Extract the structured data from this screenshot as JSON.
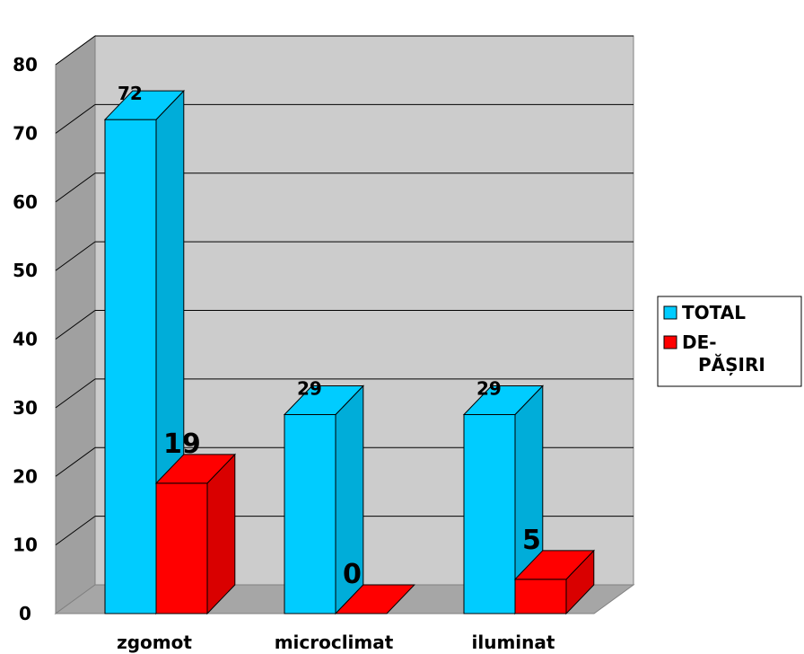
{
  "chart_data": {
    "type": "bar",
    "three_d": true,
    "categories": [
      "zgomot",
      "microclimat",
      "iluminat"
    ],
    "series": [
      {
        "name": "TOTAL",
        "values": [
          72,
          29,
          29
        ],
        "color": "#00ccff",
        "label_size": "small"
      },
      {
        "name": "DE-\nPĂȘIRI",
        "values": [
          19,
          0,
          5
        ],
        "color": "#ff0000",
        "label_size": "large"
      }
    ],
    "data_labels": [
      [
        "72",
        "29",
        "29"
      ],
      [
        "19",
        "0",
        "5"
      ]
    ],
    "y_ticks": [
      "0",
      "10",
      "20",
      "30",
      "40",
      "50",
      "60",
      "70",
      "80"
    ],
    "ylim": [
      0,
      80
    ],
    "grid": true,
    "legend_position": "right",
    "legend_lines": [
      [
        "TOTAL"
      ],
      [
        "DE-",
        "PĂȘIRI"
      ]
    ],
    "wall_color": "#cccccc",
    "floor_color": "#a6a6a6"
  }
}
